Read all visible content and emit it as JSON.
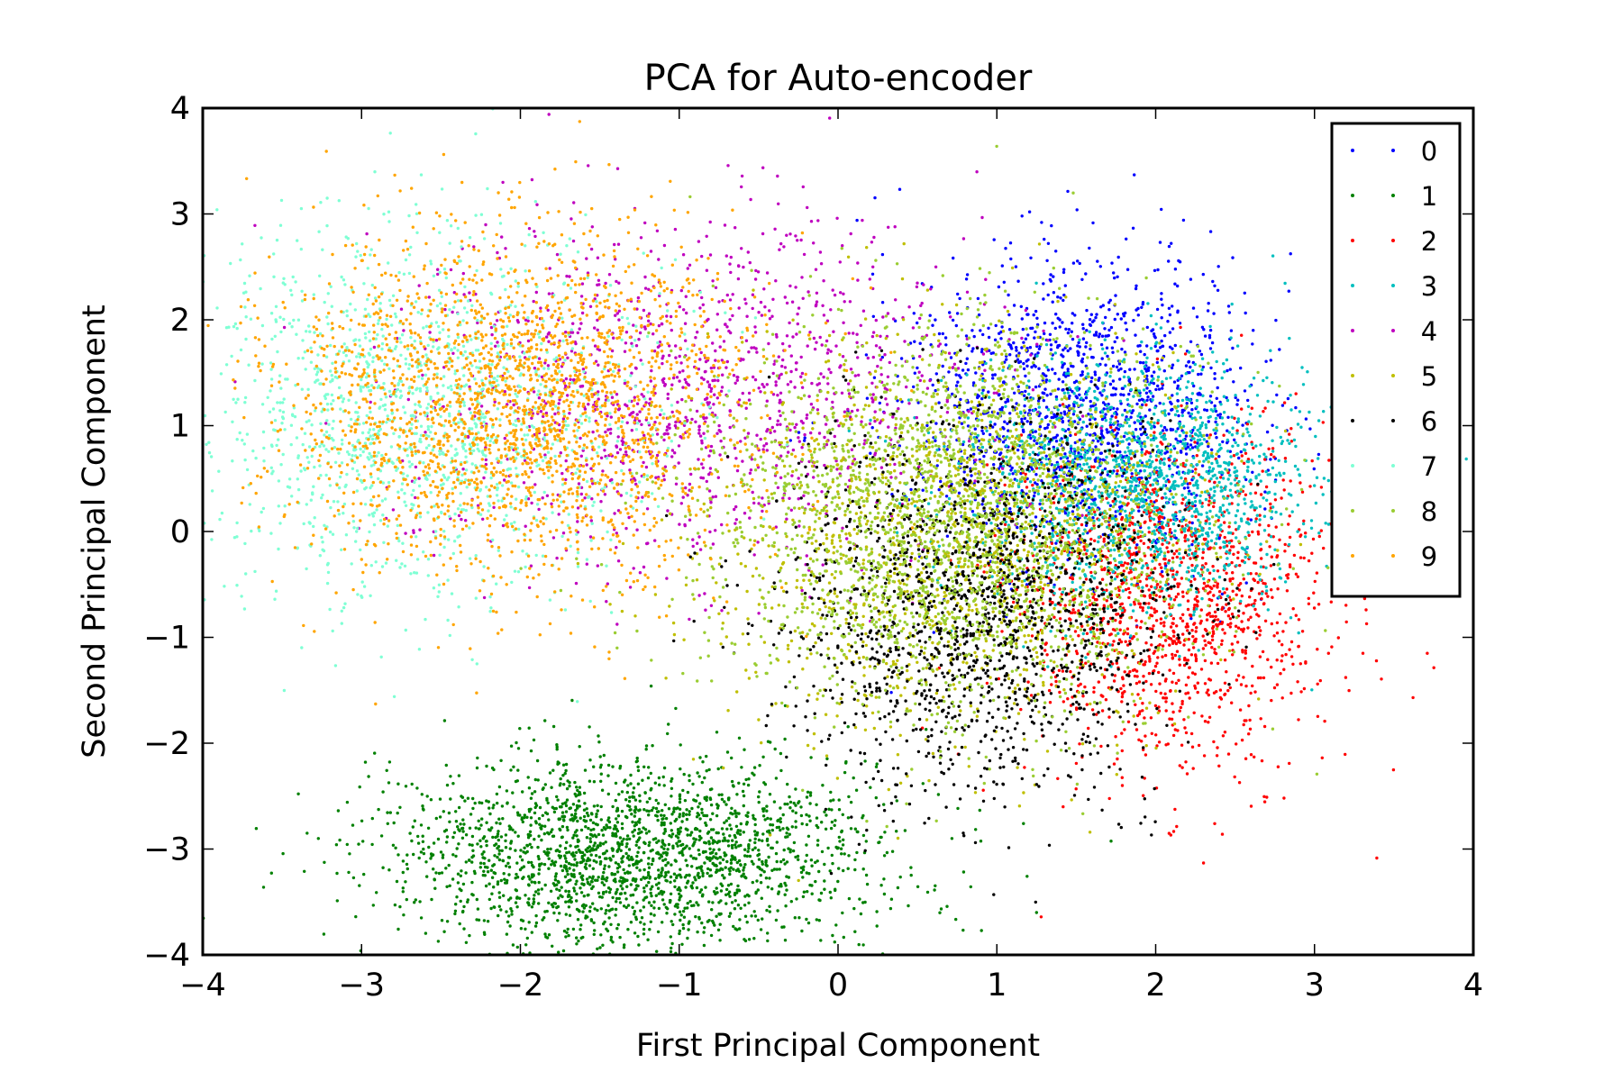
{
  "chart_data": {
    "type": "scatter",
    "title": "PCA for Auto-encoder",
    "xlabel": "First Principal Component",
    "ylabel": "Second Principal Component",
    "xlim": [
      -4,
      4
    ],
    "ylim": [
      -4,
      4
    ],
    "xticks": [
      -4,
      -3,
      -2,
      -1,
      0,
      1,
      2,
      3,
      4
    ],
    "yticks": [
      -4,
      -3,
      -2,
      -1,
      0,
      1,
      2,
      3,
      4
    ],
    "xtick_labels": [
      "−4",
      "−3",
      "−2",
      "−1",
      "0",
      "1",
      "2",
      "3",
      "4"
    ],
    "ytick_labels": [
      "−4",
      "−3",
      "−2",
      "−1",
      "0",
      "1",
      "2",
      "3",
      "4"
    ],
    "grid": false,
    "legend_position": "top-right",
    "series": [
      {
        "name": "0",
        "color": "#0000ff",
        "cluster": {
          "center": [
            1.55,
            1.15
          ],
          "spread": [
            0.55,
            0.7
          ],
          "count": 1400
        }
      },
      {
        "name": "1",
        "color": "#008000",
        "cluster": {
          "center": [
            -1.3,
            -3.05
          ],
          "spread": [
            0.75,
            0.45
          ],
          "count": 2200
        }
      },
      {
        "name": "2",
        "color": "#ff0000",
        "cluster": {
          "center": [
            2.1,
            -0.6
          ],
          "spread": [
            0.5,
            0.8
          ],
          "count": 1400
        }
      },
      {
        "name": "3",
        "color": "#00bfbf",
        "cluster": {
          "center": [
            1.9,
            0.5
          ],
          "spread": [
            0.55,
            0.6
          ],
          "count": 1500
        }
      },
      {
        "name": "4",
        "color": "#bf00bf",
        "cluster": {
          "center": [
            -0.9,
            1.3
          ],
          "spread": [
            0.9,
            0.8
          ],
          "count": 1300
        }
      },
      {
        "name": "5",
        "color": "#bfbf00",
        "cluster": {
          "center": [
            0.7,
            -0.1
          ],
          "spread": [
            0.75,
            0.9
          ],
          "count": 1600
        }
      },
      {
        "name": "6",
        "color": "#000000",
        "cluster": {
          "center": [
            0.9,
            -0.7
          ],
          "spread": [
            0.6,
            0.9
          ],
          "count": 1600
        }
      },
      {
        "name": "7",
        "color": "#7fffd4",
        "cluster": {
          "center": [
            -2.6,
            1.1
          ],
          "spread": [
            0.7,
            0.85
          ],
          "count": 1500
        }
      },
      {
        "name": "8",
        "color": "#9acd32",
        "cluster": {
          "center": [
            0.75,
            0.15
          ],
          "spread": [
            0.75,
            0.9
          ],
          "count": 2200
        }
      },
      {
        "name": "9",
        "color": "#ffa500",
        "cluster": {
          "center": [
            -2.0,
            1.2
          ],
          "spread": [
            0.75,
            0.8
          ],
          "count": 2200
        }
      }
    ]
  }
}
